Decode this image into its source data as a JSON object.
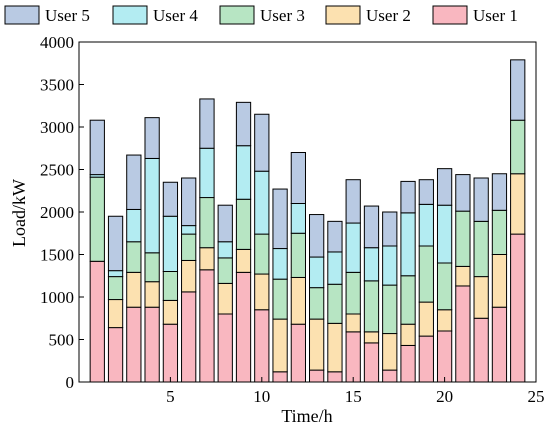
{
  "chart_data": {
    "type": "bar",
    "stacked": true,
    "xlabel": "Time/h",
    "ylabel": "Load/kW",
    "x": [
      1,
      2,
      3,
      4,
      5,
      6,
      7,
      8,
      9,
      10,
      11,
      12,
      13,
      14,
      15,
      16,
      17,
      18,
      19,
      20,
      21,
      22,
      23,
      24
    ],
    "xlim": [
      0,
      25
    ],
    "ylim": [
      0,
      4000
    ],
    "x_ticks": [
      5,
      10,
      15,
      20,
      25
    ],
    "y_ticks": [
      0,
      500,
      1000,
      1500,
      2000,
      2500,
      3000,
      3500,
      4000
    ],
    "legend_position": "top",
    "series": [
      {
        "name": "User 1",
        "color": "#f9b7c0",
        "values": [
          1420,
          640,
          880,
          880,
          680,
          1060,
          1320,
          800,
          1290,
          850,
          120,
          680,
          140,
          120,
          590,
          460,
          140,
          430,
          540,
          600,
          1130,
          750,
          880,
          1740
        ]
      },
      {
        "name": "User 2",
        "color": "#fce1b0",
        "values": [
          0,
          330,
          410,
          300,
          280,
          370,
          260,
          360,
          270,
          420,
          620,
          550,
          600,
          570,
          210,
          130,
          430,
          250,
          400,
          250,
          230,
          490,
          620,
          710
        ]
      },
      {
        "name": "User 3",
        "color": "#b7e5c3",
        "values": [
          990,
          270,
          360,
          340,
          340,
          310,
          590,
          300,
          590,
          470,
          470,
          520,
          370,
          460,
          490,
          600,
          570,
          570,
          660,
          550,
          650,
          650,
          520,
          630
        ]
      },
      {
        "name": "User 4",
        "color": "#b3ecf2",
        "values": [
          30,
          70,
          380,
          1110,
          650,
          100,
          580,
          190,
          630,
          740,
          360,
          350,
          360,
          380,
          580,
          390,
          460,
          740,
          490,
          680,
          0,
          0,
          0,
          0
        ]
      },
      {
        "name": "User 5",
        "color": "#b9cae3",
        "values": [
          640,
          640,
          640,
          480,
          400,
          560,
          580,
          430,
          510,
          670,
          700,
          600,
          500,
          360,
          510,
          490,
          400,
          370,
          290,
          430,
          430,
          510,
          430,
          710
        ]
      }
    ]
  }
}
